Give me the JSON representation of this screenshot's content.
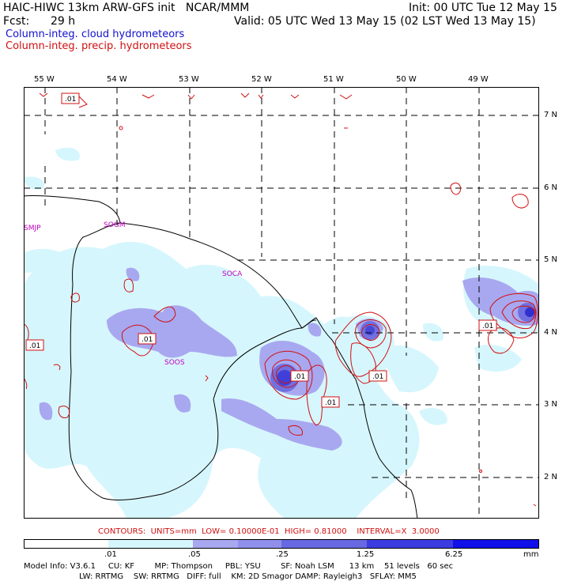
{
  "header": {
    "model_line": "HAIC-HIWC 13km ARW-GFS init   NCAR/MMM",
    "init_line": "Init: 00 UTC Tue 12 May 15",
    "fcst_label": "Fcst:",
    "fcst_value": "29 h",
    "valid_line": "Valid: 05 UTC Wed 13 May 15 (02 LST Wed 13 May 15)",
    "legend_cloud": "Column-integ. cloud hydrometeors",
    "legend_precip": "Column-integ. precip. hydrometeors"
  },
  "map": {
    "lon_labels": [
      "55 W",
      "54 W",
      "53 W",
      "52 W",
      "51 W",
      "50 W",
      "49 W"
    ],
    "lat_labels": [
      "7 N",
      "6 N",
      "5 N",
      "4 N",
      "3 N",
      "2 N"
    ],
    "place_labels": [
      "SMJP",
      "SOGM",
      "SOCA",
      "SOOS"
    ],
    "contour_labels": [
      ".01",
      ".01",
      ".01",
      ".01",
      ".01",
      ".01",
      ".01"
    ],
    "colors": {
      "cloud_light": "#d6f6fd",
      "cloud_mid": "#a8a8f0",
      "cloud_dark": "#7070e0",
      "cloud_max": "#3030d0",
      "precip": "#d01010",
      "coast": "#000000",
      "place": "#c000c0"
    }
  },
  "contours": {
    "line": "CONTOURS:  UNITS=mm  LOW= 0.10000E-01  HIGH= 0.81000    INTERVAL=X  3.0000"
  },
  "colorbar": {
    "ticks": [
      ".01",
      ".05",
      ".25",
      "1.25",
      "6.25"
    ],
    "unit": "mm",
    "colors": [
      "#ffffff",
      "#d6f6fd",
      "#a8a8f0",
      "#8888ea",
      "#6060e0",
      "#3c3ce0",
      "#1010e8"
    ]
  },
  "footer": {
    "line1": "Model Info: V3.6.1     CU: KF        MP: Thompson     PBL: YSU        SF: Noah LSM      13 km    51 levels   60 sec",
    "line2": "LW: RRTMG    SW: RRTMG   DIFF: full    KM: 2D Smagor DAMP: Rayleigh3   SFLAY: MM5"
  }
}
